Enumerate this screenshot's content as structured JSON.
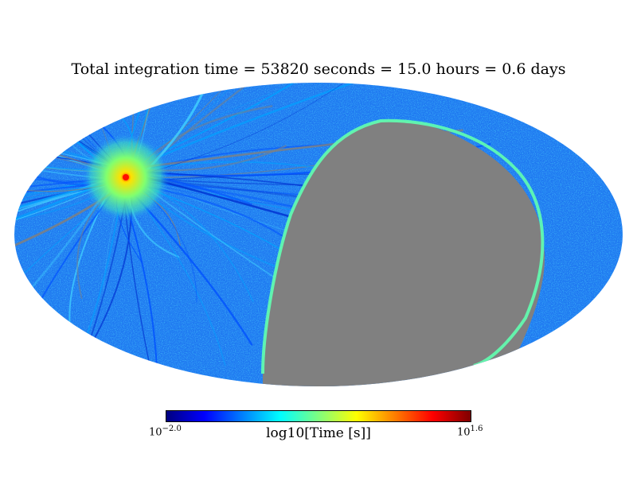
{
  "chart_data": {
    "type": "heatmap",
    "projection": "mollweide",
    "title": "Total integration time = 53820 seconds = 15.0 hours = 0.6 days",
    "colorbar": {
      "label": "log10[Time [s]]",
      "min_label_base": "10",
      "min_label_exp": "−2.0",
      "max_label_base": "10",
      "max_label_exp": "1.6",
      "range": [
        -2.0,
        1.6
      ],
      "colormap": "jet"
    },
    "unobserved_color": "#808080",
    "hotspot_peak_log10": 1.6
  }
}
